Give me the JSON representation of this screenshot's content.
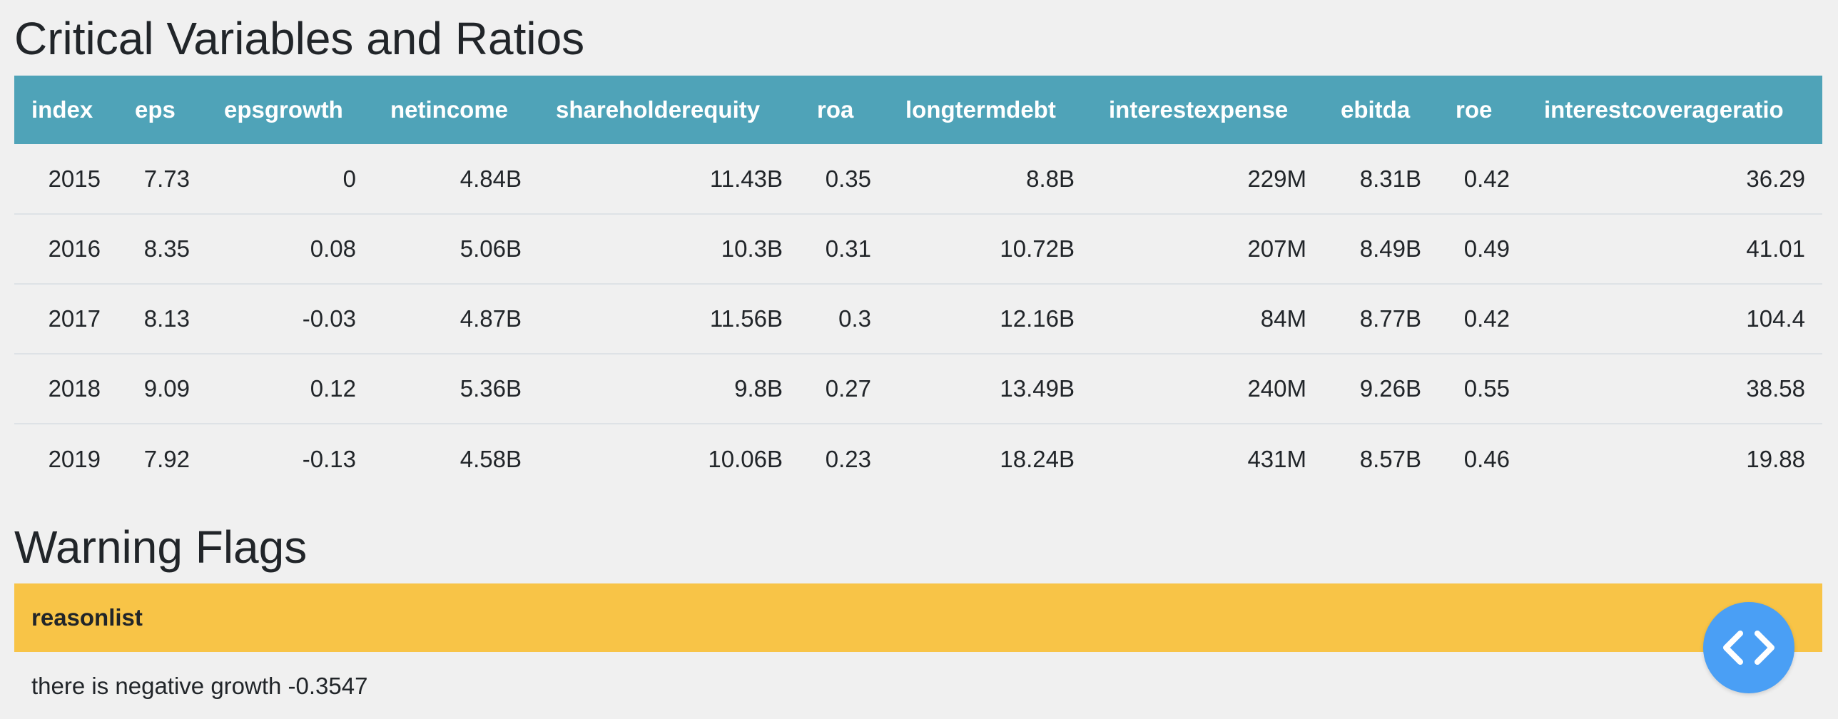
{
  "critical": {
    "title": "Critical Variables and Ratios",
    "columns": [
      "index",
      "eps",
      "epsgrowth",
      "netincome",
      "shareholderequity",
      "roa",
      "longtermdebt",
      "interestexpense",
      "ebitda",
      "roe",
      "interestcoverageratio"
    ],
    "rows": [
      [
        "2015",
        "7.73",
        "0",
        "4.84B",
        "11.43B",
        "0.35",
        "8.8B",
        "229M",
        "8.31B",
        "0.42",
        "36.29"
      ],
      [
        "2016",
        "8.35",
        "0.08",
        "5.06B",
        "10.3B",
        "0.31",
        "10.72B",
        "207M",
        "8.49B",
        "0.49",
        "41.01"
      ],
      [
        "2017",
        "8.13",
        "-0.03",
        "4.87B",
        "11.56B",
        "0.3",
        "12.16B",
        "84M",
        "8.77B",
        "0.42",
        "104.4"
      ],
      [
        "2018",
        "9.09",
        "0.12",
        "5.36B",
        "9.8B",
        "0.27",
        "13.49B",
        "240M",
        "9.26B",
        "0.55",
        "38.58"
      ],
      [
        "2019",
        "7.92",
        "-0.13",
        "4.58B",
        "10.06B",
        "0.23",
        "18.24B",
        "431M",
        "8.57B",
        "0.46",
        "19.88"
      ]
    ]
  },
  "warnings": {
    "title": "Warning Flags",
    "columns": [
      "reasonlist"
    ],
    "rows": [
      [
        "there is negative growth -0.3547"
      ]
    ]
  },
  "fab": {
    "icon": "code-icon",
    "color": "#4a9ff5"
  },
  "colors": {
    "header_teal": "#4fa3b8",
    "header_yellow": "#f8c447"
  }
}
